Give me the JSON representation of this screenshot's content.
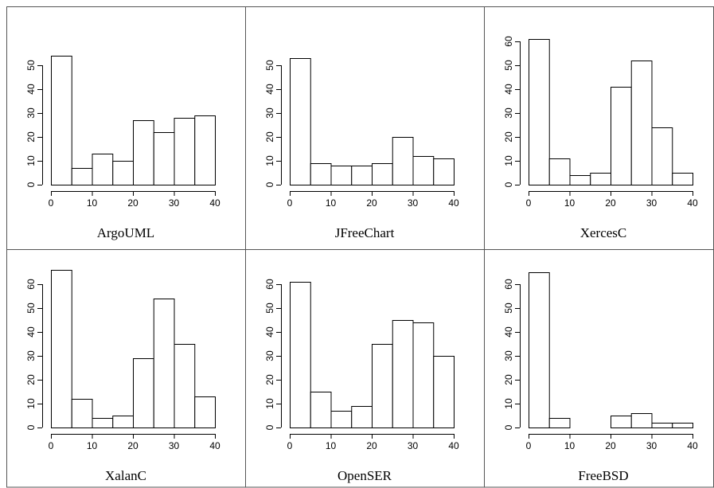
{
  "chart_data": [
    {
      "type": "bar",
      "title": "ArgoUML",
      "bins": [
        [
          0,
          5
        ],
        [
          5,
          10
        ],
        [
          10,
          15
        ],
        [
          15,
          20
        ],
        [
          20,
          25
        ],
        [
          25,
          30
        ],
        [
          30,
          35
        ],
        [
          35,
          40
        ]
      ],
      "values": [
        54,
        7,
        13,
        10,
        27,
        22,
        28,
        29
      ],
      "xlim": [
        0,
        40
      ],
      "xticks": [
        0,
        10,
        20,
        30,
        40
      ],
      "yticks": [
        0,
        10,
        20,
        30,
        40,
        50
      ]
    },
    {
      "type": "bar",
      "title": "JFreeChart",
      "bins": [
        [
          0,
          5
        ],
        [
          5,
          10
        ],
        [
          10,
          15
        ],
        [
          15,
          20
        ],
        [
          20,
          25
        ],
        [
          25,
          30
        ],
        [
          30,
          35
        ],
        [
          35,
          40
        ]
      ],
      "values": [
        53,
        9,
        8,
        8,
        9,
        20,
        12,
        11
      ],
      "xlim": [
        0,
        40
      ],
      "xticks": [
        0,
        10,
        20,
        30,
        40
      ],
      "yticks": [
        0,
        10,
        20,
        30,
        40,
        50
      ]
    },
    {
      "type": "bar",
      "title": "XercesC",
      "bins": [
        [
          0,
          5
        ],
        [
          5,
          10
        ],
        [
          10,
          15
        ],
        [
          15,
          20
        ],
        [
          20,
          25
        ],
        [
          25,
          30
        ],
        [
          30,
          35
        ],
        [
          35,
          40
        ]
      ],
      "values": [
        61,
        11,
        4,
        5,
        41,
        52,
        24,
        5
      ],
      "xlim": [
        0,
        40
      ],
      "xticks": [
        0,
        10,
        20,
        30,
        40
      ],
      "yticks": [
        0,
        10,
        20,
        30,
        40,
        50,
        60
      ]
    },
    {
      "type": "bar",
      "title": "XalanC",
      "bins": [
        [
          0,
          5
        ],
        [
          5,
          10
        ],
        [
          10,
          15
        ],
        [
          15,
          20
        ],
        [
          20,
          25
        ],
        [
          25,
          30
        ],
        [
          30,
          35
        ],
        [
          35,
          40
        ]
      ],
      "values": [
        66,
        12,
        4,
        5,
        29,
        54,
        35,
        13
      ],
      "xlim": [
        0,
        40
      ],
      "xticks": [
        0,
        10,
        20,
        30,
        40
      ],
      "yticks": [
        0,
        10,
        20,
        30,
        40,
        50,
        60
      ]
    },
    {
      "type": "bar",
      "title": "OpenSER",
      "bins": [
        [
          0,
          5
        ],
        [
          5,
          10
        ],
        [
          10,
          15
        ],
        [
          15,
          20
        ],
        [
          20,
          25
        ],
        [
          25,
          30
        ],
        [
          30,
          35
        ],
        [
          35,
          40
        ]
      ],
      "values": [
        61,
        15,
        7,
        9,
        35,
        45,
        44,
        30
      ],
      "xlim": [
        0,
        40
      ],
      "xticks": [
        0,
        10,
        20,
        30,
        40
      ],
      "yticks": [
        0,
        10,
        20,
        30,
        40,
        50,
        60
      ]
    },
    {
      "type": "bar",
      "title": "FreeBSD",
      "bins": [
        [
          0,
          5
        ],
        [
          5,
          10
        ],
        [
          10,
          15
        ],
        [
          15,
          20
        ],
        [
          20,
          25
        ],
        [
          25,
          30
        ],
        [
          30,
          35
        ],
        [
          35,
          40
        ]
      ],
      "values": [
        65,
        4,
        0,
        0,
        5,
        6,
        2,
        2
      ],
      "xlim": [
        0,
        40
      ],
      "xticks": [
        0,
        10,
        20,
        30,
        40
      ],
      "yticks": [
        0,
        10,
        20,
        30,
        40,
        50,
        60
      ]
    }
  ]
}
